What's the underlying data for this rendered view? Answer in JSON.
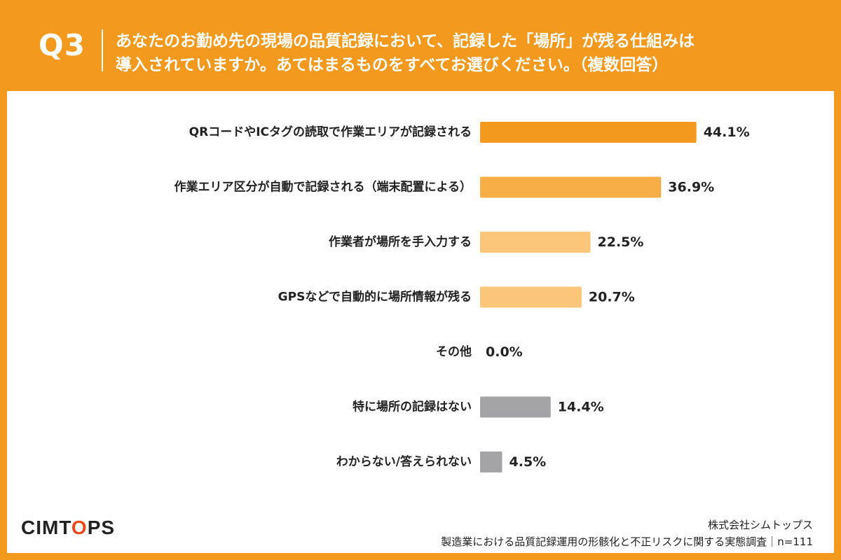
{
  "header": {
    "qnum": "Q3",
    "question_line1": "あなたのお勤め先の現場の品質記録において、記録した「場所」が残る仕組みは",
    "question_line2": "導入されていますか。あてはまるものをすべてお選びください。（複数回答）"
  },
  "footer": {
    "logo_pre": "CIMT",
    "logo_dot": "O",
    "logo_post": "PS",
    "company": "株式会社シムトップス",
    "survey": "製造業における品質記録運用の形骸化と不正リスクに関する実態調査｜n=111"
  },
  "colors": {
    "accent": "#F39A1E",
    "bar_dark_orange": "#F39A1E",
    "bar_mid_orange": "#F8AE46",
    "bar_light_orange": "#FBC67A",
    "bar_gray": "#A4A3A5"
  },
  "chart_data": {
    "type": "bar",
    "orientation": "horizontal",
    "categories": [
      "QRコードやICタグの読取で作業エリアが記録される",
      "作業エリア区分が自動で記録される（端末配置による）",
      "作業者が場所を手入力する",
      "GPSなどで自動的に場所情報が残る",
      "その他",
      "特に場所の記録はない",
      "わからない/答えられない"
    ],
    "values": [
      44.1,
      36.9,
      22.5,
      20.7,
      0.0,
      14.4,
      4.5
    ],
    "value_labels": [
      "44.1%",
      "36.9%",
      "22.5%",
      "20.7%",
      "0.0%",
      "14.4%",
      "4.5%"
    ],
    "bar_colors": [
      "#F39A1E",
      "#F8AE46",
      "#FBC67A",
      "#FBC67A",
      "#FBC67A",
      "#A4A3A5",
      "#A4A3A5"
    ],
    "xlim": [
      0,
      100
    ],
    "grid": false,
    "legend": "none"
  }
}
